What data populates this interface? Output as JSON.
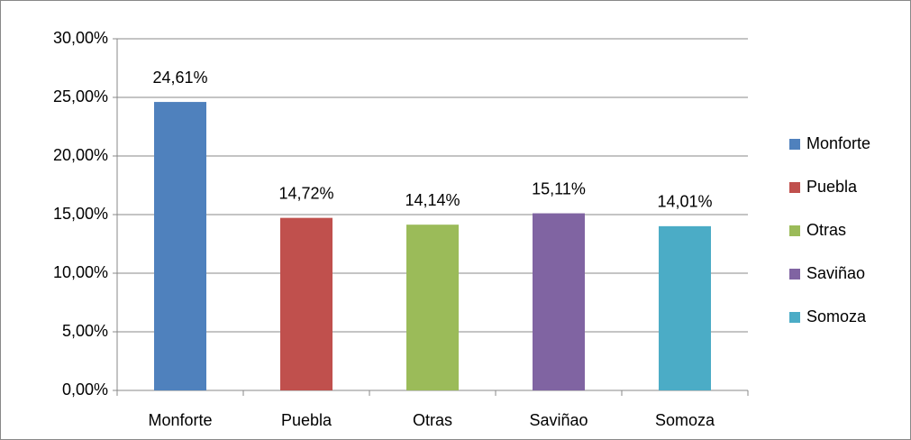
{
  "chart_data": {
    "type": "bar",
    "categories": [
      "Monforte",
      "Puebla",
      "Otras",
      "Saviñao",
      "Somoza"
    ],
    "values": [
      24.61,
      14.72,
      14.14,
      15.11,
      14.01
    ],
    "value_labels": [
      "24,61%",
      "14,72%",
      "14,14%",
      "15,11%",
      "14,01%"
    ],
    "colors": [
      "#4f81bd",
      "#c0504d",
      "#9bbb59",
      "#8064a2",
      "#4bacc6"
    ],
    "ylim": [
      0,
      30
    ],
    "yticks": [
      {
        "value": 0,
        "label": "0,00%"
      },
      {
        "value": 5,
        "label": "5,00%"
      },
      {
        "value": 10,
        "label": "10,00%"
      },
      {
        "value": 15,
        "label": "15,00%"
      },
      {
        "value": 20,
        "label": "20,00%"
      },
      {
        "value": 25,
        "label": "25,00%"
      },
      {
        "value": 30,
        "label": "30,00%"
      }
    ],
    "grid": true,
    "legend": "right"
  }
}
